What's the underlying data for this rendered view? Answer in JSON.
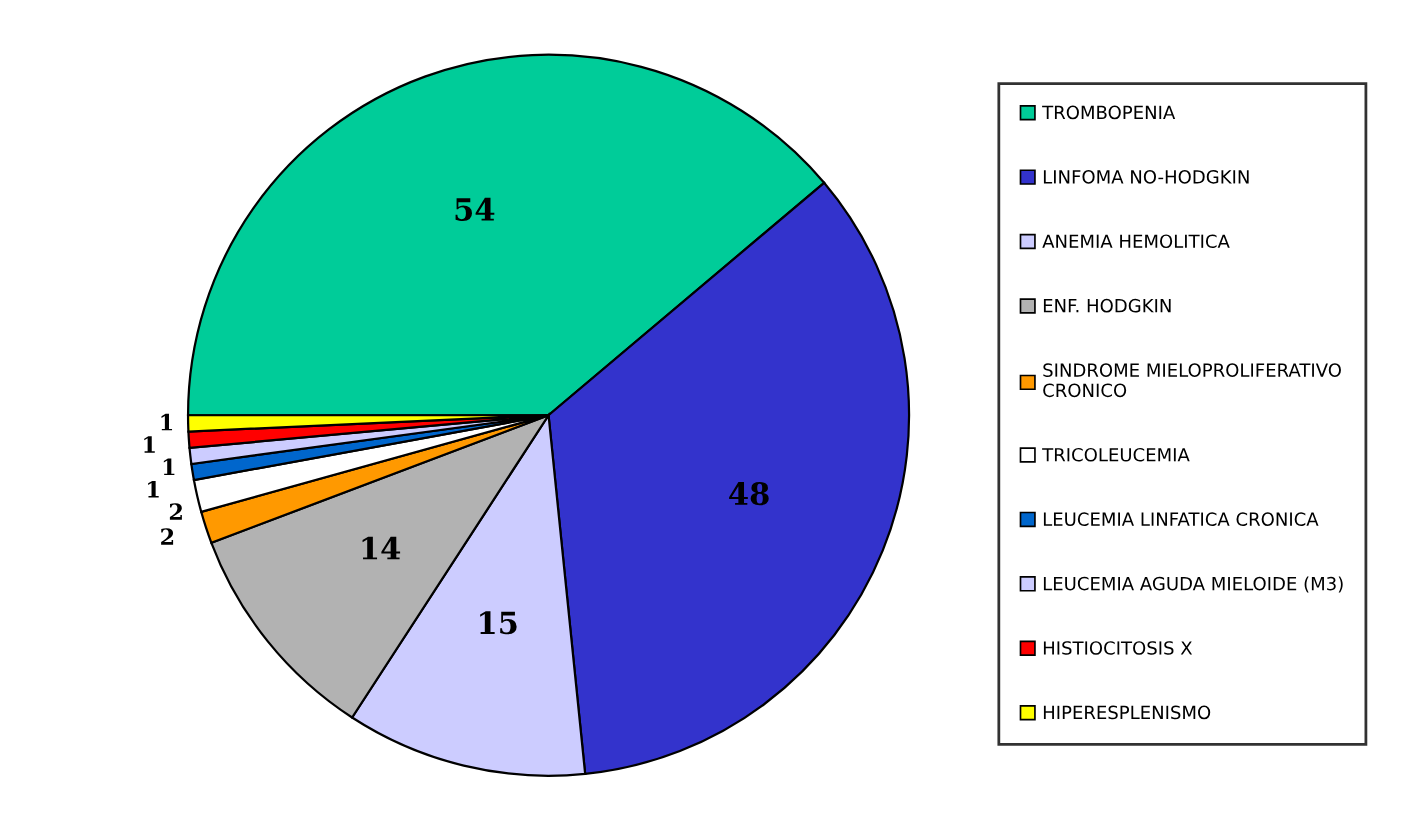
{
  "chart_data": {
    "type": "pie",
    "categories": [
      "TROMBOPENIA",
      "LINFOMA NO-HODGKIN",
      "ANEMIA HEMOLITICA",
      "ENF. HODGKIN",
      "SINDROME MIELOPROLIFERATIVO CRONICO",
      "TRICOLEUCEMIA",
      "LEUCEMIA LINFATICA CRONICA",
      "LEUCEMIA AGUDA MIELOIDE (M3)",
      "HISTIOCITOSIS X",
      "HIPERESPLENISMO"
    ],
    "values": [
      54,
      48,
      15,
      14,
      2,
      2,
      1,
      1,
      1,
      1
    ],
    "colors": [
      "#00cc99",
      "#3333cc",
      "#ccccff",
      "#b2b2b2",
      "#ff9900",
      "#ffffff",
      "#0066cc",
      "#ccccff",
      "#ff0000",
      "#ffff00"
    ],
    "data_labels": true,
    "legend": "right"
  }
}
